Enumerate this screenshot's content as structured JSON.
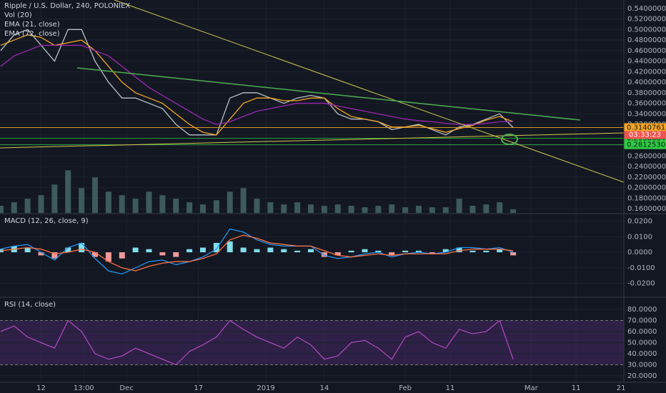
{
  "chart_data": [
    {
      "type": "line",
      "title": "Ripple / U.S. Dollar, 240, POLONIEX",
      "volume_name": "Vol (20)",
      "xlim": [
        1.86,
        150.0
      ],
      "xticks": [
        {
          "value": 11,
          "label": "12"
        },
        {
          "value": 20.5,
          "label": "13:00"
        },
        {
          "value": 30,
          "label": "Dec"
        },
        {
          "value": 46,
          "label": "17"
        },
        {
          "value": 61,
          "label": "2019"
        },
        {
          "value": 74,
          "label": "14"
        },
        {
          "value": 92,
          "label": "Feb"
        },
        {
          "value": 102,
          "label": "11"
        },
        {
          "value": 120,
          "label": "Mar"
        },
        {
          "value": 130,
          "label": "11"
        },
        {
          "value": 140,
          "label": "21"
        }
      ],
      "x": [
        2,
        5,
        8,
        11,
        14,
        17,
        20,
        23,
        26,
        29,
        32,
        35,
        38,
        41,
        44,
        47,
        50,
        53,
        56,
        59,
        62,
        65,
        68,
        71,
        74,
        77,
        80,
        83,
        86,
        89,
        92,
        95,
        98,
        101,
        104,
        107,
        110,
        113,
        116
      ],
      "ylim": [
        0.152,
        0.556
      ],
      "yticks": [
        {
          "value": 0.54,
          "label": "0.54000000"
        },
        {
          "value": 0.52,
          "label": "0.52000000"
        },
        {
          "value": 0.5,
          "label": "0.50000000"
        },
        {
          "value": 0.48,
          "label": "0.48000000"
        },
        {
          "value": 0.46,
          "label": "0.46000000"
        },
        {
          "value": 0.44,
          "label": "0.44000000"
        },
        {
          "value": 0.42,
          "label": "0.42000000"
        },
        {
          "value": 0.4,
          "label": "0.40000000"
        },
        {
          "value": 0.38,
          "label": "0.38000000"
        },
        {
          "value": 0.36,
          "label": "0.36000000"
        },
        {
          "value": 0.34,
          "label": "0.34000000"
        },
        {
          "value": 0.32,
          "label": "0.32000000"
        },
        {
          "value": 0.3,
          "label": "0.30000000"
        },
        {
          "value": 0.28,
          "label": "0.28000000"
        },
        {
          "value": 0.26,
          "label": "0.26000000"
        },
        {
          "value": 0.24,
          "label": "0.24000000"
        },
        {
          "value": 0.22,
          "label": "0.22000000"
        },
        {
          "value": 0.2,
          "label": "0.20000000"
        },
        {
          "value": 0.18,
          "label": "0.18000000"
        },
        {
          "value": 0.16,
          "label": "0.16000000"
        }
      ],
      "grid": true,
      "series": [
        {
          "color": "#b7c4c9",
          "values": [
            0.46,
            0.49,
            0.5,
            0.47,
            0.44,
            0.5,
            0.5,
            0.44,
            0.4,
            0.37,
            0.37,
            0.36,
            0.35,
            0.32,
            0.3,
            0.3,
            0.3,
            0.37,
            0.38,
            0.38,
            0.37,
            0.36,
            0.37,
            0.375,
            0.37,
            0.34,
            0.33,
            0.33,
            0.325,
            0.31,
            0.315,
            0.32,
            0.31,
            0.3,
            0.315,
            0.32,
            0.33,
            0.34,
            0.314
          ]
        },
        {
          "name": "EMA (21, close)",
          "color": "#f5a623",
          "values": [
            0.47,
            0.48,
            0.49,
            0.485,
            0.47,
            0.475,
            0.48,
            0.46,
            0.43,
            0.4,
            0.38,
            0.37,
            0.36,
            0.34,
            0.32,
            0.305,
            0.3,
            0.33,
            0.36,
            0.37,
            0.37,
            0.365,
            0.365,
            0.37,
            0.37,
            0.35,
            0.335,
            0.33,
            0.325,
            0.315,
            0.315,
            0.318,
            0.312,
            0.305,
            0.312,
            0.318,
            0.328,
            0.335,
            0.325
          ]
        },
        {
          "name": "EMA (72, close)",
          "color": "#9c27b0",
          "values": [
            0.43,
            0.45,
            0.46,
            0.47,
            0.47,
            0.47,
            0.47,
            0.46,
            0.45,
            0.43,
            0.41,
            0.39,
            0.375,
            0.36,
            0.345,
            0.33,
            0.32,
            0.325,
            0.335,
            0.345,
            0.35,
            0.355,
            0.36,
            0.36,
            0.36,
            0.355,
            0.35,
            0.345,
            0.34,
            0.335,
            0.33,
            0.327,
            0.325,
            0.322,
            0.32,
            0.32,
            0.322,
            0.325,
            0.325
          ]
        }
      ],
      "volume": [
        10,
        15,
        20,
        25,
        40,
        60,
        35,
        50,
        30,
        25,
        20,
        30,
        25,
        20,
        15,
        12,
        18,
        30,
        35,
        20,
        15,
        12,
        15,
        12,
        10,
        12,
        10,
        8,
        10,
        12,
        8,
        10,
        8,
        8,
        20,
        10,
        12,
        15,
        5
      ],
      "volume_color": "#3d5a5c",
      "y2lim": [
        0,
        300
      ],
      "annotations": [
        {
          "value": 0.31407613,
          "label": "0.31407613",
          "color": "#f5a623"
        },
        {
          "value": 0.29386849,
          "label": "0.29386849",
          "color": "#2ecc40"
        },
        {
          "value": 0.28125305,
          "label": "0.28125305",
          "color": "#2ecc40"
        }
      ],
      "countdown": "03:33:23"
    },
    {
      "type": "bar",
      "title": "MACD (12, 26, close, 9)",
      "ylim": [
        -0.0285,
        0.0244
      ],
      "yticks": [
        {
          "value": 0.02,
          "label": "0.0200"
        },
        {
          "value": 0.01,
          "label": "0.0100"
        },
        {
          "value": 0,
          "label": "0.0000"
        },
        {
          "value": -0.01,
          "label": "-0.0100"
        },
        {
          "value": -0.02,
          "label": "-0.0200"
        }
      ],
      "values": [
        0.002,
        0.004,
        0.003,
        -0.002,
        -0.004,
        0.003,
        0.006,
        -0.003,
        -0.006,
        -0.004,
        0.003,
        0.002,
        -0.002,
        -0.003,
        0.002,
        0.003,
        0.006,
        0.007,
        0.003,
        0.002,
        0.003,
        0.002,
        0.001,
        0.002,
        -0.003,
        -0.002,
        0.001,
        0.002,
        0.001,
        -0.002,
        0.001,
        0.001,
        -0.001,
        0.002,
        0.003,
        0.001,
        0.001,
        0.002,
        -0.002
      ],
      "up_color": "#80deea",
      "down_color": "#ef9a9a",
      "series": [
        {
          "color": "#2196f3",
          "values": [
            0.002,
            0.004,
            0.005,
            0.0,
            -0.005,
            0.003,
            0.006,
            -0.004,
            -0.012,
            -0.014,
            -0.01,
            -0.006,
            -0.005,
            -0.008,
            -0.006,
            -0.003,
            0.002,
            0.015,
            0.013,
            0.008,
            0.005,
            0.004,
            0.004,
            0.004,
            -0.002,
            -0.004,
            -0.003,
            -0.001,
            0.0,
            -0.003,
            -0.001,
            0.0,
            -0.001,
            0.0,
            0.003,
            0.003,
            0.002,
            0.003,
            0.0
          ]
        },
        {
          "color": "#ff7043",
          "values": [
            0.001,
            0.002,
            0.003,
            0.002,
            -0.001,
            0.0,
            0.002,
            0.0,
            -0.006,
            -0.01,
            -0.012,
            -0.009,
            -0.007,
            -0.006,
            -0.006,
            -0.004,
            -0.001,
            0.008,
            0.011,
            0.009,
            0.006,
            0.005,
            0.004,
            0.004,
            0.001,
            -0.002,
            -0.003,
            -0.002,
            -0.001,
            -0.002,
            -0.001,
            -0.001,
            -0.001,
            -0.001,
            0.001,
            0.002,
            0.002,
            0.002,
            0.001
          ]
        }
      ]
    },
    {
      "type": "line",
      "title": "RSI (14, close)",
      "ylim": [
        14.2,
        90.3
      ],
      "yticks": [
        {
          "value": 80,
          "label": "80.0000"
        },
        {
          "value": 70,
          "label": "70.0000"
        },
        {
          "value": 60,
          "label": "60.0000"
        },
        {
          "value": 50,
          "label": "50.0000"
        },
        {
          "value": 40,
          "label": "40.0000"
        },
        {
          "value": 30,
          "label": "30.0000"
        },
        {
          "value": 20,
          "label": "20.0000"
        }
      ],
      "band": [
        30,
        70
      ],
      "band_color": "#4a2a6a",
      "series": [
        {
          "color": "#ab47bc",
          "values": [
            60,
            65,
            55,
            50,
            45,
            70,
            60,
            40,
            35,
            38,
            45,
            40,
            35,
            30,
            42,
            48,
            55,
            70,
            62,
            55,
            50,
            45,
            55,
            48,
            35,
            38,
            50,
            52,
            45,
            35,
            55,
            60,
            50,
            45,
            62,
            58,
            60,
            70,
            35
          ]
        }
      ]
    }
  ]
}
